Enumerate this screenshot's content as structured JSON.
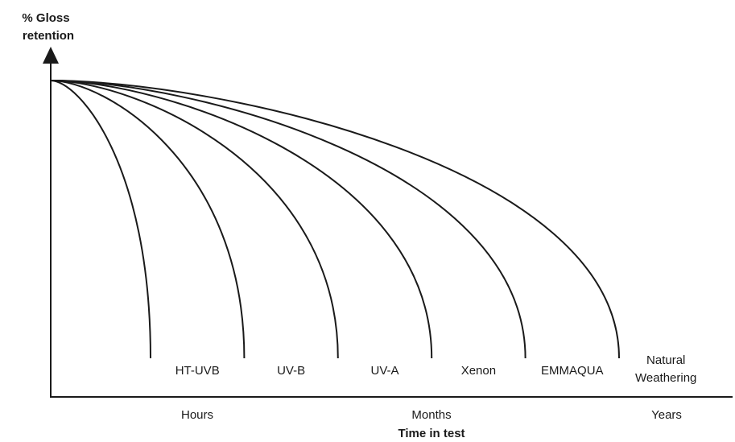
{
  "chart_data": {
    "type": "line",
    "title": "",
    "ylabel_line1": "% Gloss",
    "ylabel_line2": "retention",
    "xlabel": "Time in test",
    "x_ticks": [
      "Hours",
      "Months",
      "Years"
    ],
    "series": [
      {
        "name": "HT-UVB",
        "end_x": 1.0
      },
      {
        "name": "UV-B",
        "end_x": 2.0
      },
      {
        "name": "UV-A",
        "end_x": 3.0
      },
      {
        "name": "Xenon",
        "end_x": 4.0
      },
      {
        "name": "EMMAQUA",
        "end_x": 5.0
      },
      {
        "name": "Natural Weathering",
        "end_x": 6.0
      }
    ],
    "series_labels": [
      [
        "HT-UVB"
      ],
      [
        "UV-B"
      ],
      [
        "UV-A"
      ],
      [
        "Xenon"
      ],
      [
        "EMMAQUA"
      ],
      [
        "Natural",
        "Weathering"
      ]
    ],
    "y_start": 100,
    "y_end": 0,
    "line_color": "#1a1a1a"
  }
}
